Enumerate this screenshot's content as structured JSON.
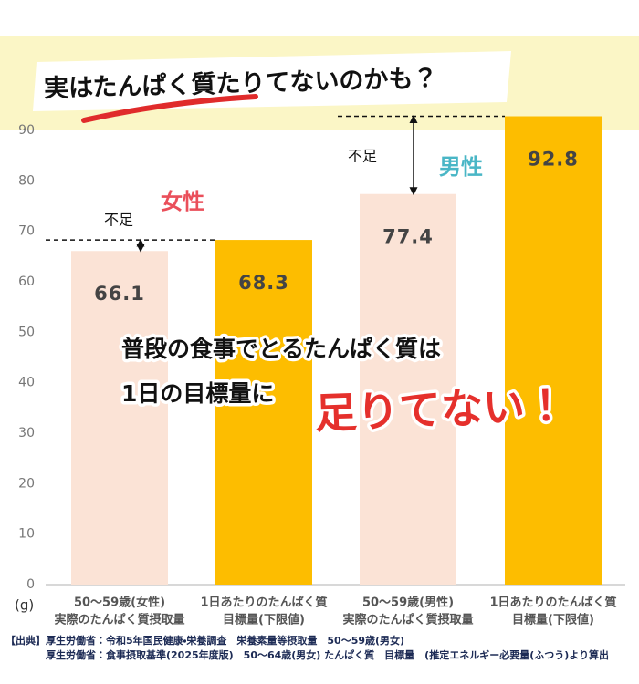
{
  "chart_data": {
    "type": "bar",
    "title": "実はたんぱく質たりてないのかも？",
    "y_unit": "(g)",
    "categories": [
      [
        "50〜59歳(女性)",
        "実際のたんぱく質摂取量"
      ],
      [
        "1日あたりのたんぱく質",
        "目標量(下限値)"
      ],
      [
        "50〜59歳(男性)",
        "実際のたんぱく質摂取量"
      ],
      [
        "1日あたりのたんぱく質",
        "目標量(下限値)"
      ]
    ],
    "values": [
      66.1,
      68.3,
      77.4,
      92.8
    ],
    "colors": [
      "#fbe3d6",
      "#fdbd00",
      "#fbe3d6",
      "#fdbd00"
    ],
    "ylim": [
      0,
      90
    ],
    "yticks": [
      0,
      10,
      20,
      30,
      40,
      50,
      60,
      70,
      80,
      90
    ],
    "grid": false,
    "annotations": {
      "female": "女性",
      "male": "男性",
      "shortage_female": "不足",
      "shortage_male": "不足",
      "message_line1": "普段の食事でとるたんぱく質は",
      "message_line2": "1日の目標量に",
      "message_emphasis": "足りてない！"
    },
    "source": [
      "【出典】厚生労働省：令和5年国民健康・栄養調査　栄養素量等摂取量　50〜59歳(男女)",
      "厚生労働省：食事摂取基準(2025年度版)　50〜64歳(男女) たんぱく質　目標量　(推定エネルギー必要量(ふつう)より算出"
    ]
  }
}
